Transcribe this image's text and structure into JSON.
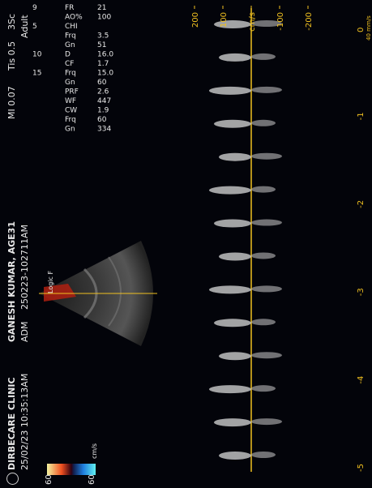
{
  "header": {
    "clinic": "DIRBECARE CLINIC",
    "patient": "GANESH KUMAR, AGE31",
    "mi": "MI 0.07",
    "tis": "Tis 0.5",
    "probe": "3Sc",
    "datetime": "25/02/23 10:35:13AM",
    "adm": "ADM",
    "study_id": "250223-102711AM",
    "preset": "Adult"
  },
  "params": {
    "fr": {
      "depth": "9",
      "label": "FR",
      "value": "21"
    },
    "ao": {
      "label": "AO%",
      "value": "100"
    },
    "chi": {
      "depth": "5",
      "label": "CHI"
    },
    "frq": {
      "label": "Frq",
      "value": "3.5"
    },
    "gn": {
      "label": "Gn",
      "value": "51"
    },
    "d": {
      "depth": "10",
      "label": "D",
      "value": "16.0"
    },
    "cf": {
      "label": "CF",
      "value": "1.7"
    },
    "cf_frq": {
      "depth": "15",
      "label": "Frq",
      "value": "15.0"
    },
    "cf_gn": {
      "label": "Gn",
      "value": "60"
    },
    "prf": {
      "label": "PRF",
      "value": "2.6"
    },
    "cf_wf": {
      "label": "WF",
      "value": "447"
    },
    "cw": {
      "label": "CW",
      "value": "1.9"
    },
    "cw_frq": {
      "label": "Frq",
      "value": "60"
    },
    "cw_gn": {
      "label": "Gn",
      "value": "334"
    },
    "cw_wf": {
      "label": "WF",
      "value": ""
    }
  },
  "colorbar": {
    "top": "60",
    "bottom": "60",
    "unit": "cm/s"
  },
  "scale": {
    "labels": [
      "200",
      "100",
      "cm/s",
      "-100",
      "-200"
    ],
    "values": [
      200,
      100,
      0,
      -100,
      -200
    ],
    "unit": "cm/s"
  },
  "time_axis": {
    "labels": [
      "-5",
      "-4",
      "-3",
      "-2",
      "-1",
      "0"
    ],
    "sweep": "40 mm/s"
  },
  "logo_label": "Logic\nF",
  "colors": {
    "accent": "#f0c020",
    "text": "#e8e8e8",
    "bg": "#03040a"
  }
}
